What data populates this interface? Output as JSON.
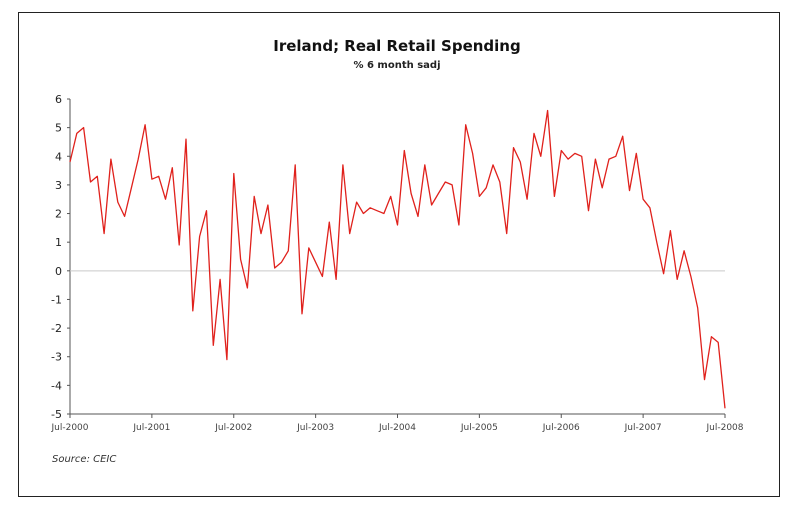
{
  "chart_data": {
    "type": "line",
    "title": "Ireland; Real Retail Spending",
    "subtitle": "% 6 month sadj",
    "source": "Source: CEIC",
    "ylim": [
      -5,
      6
    ],
    "yticks": [
      "6",
      "5",
      "4",
      "3",
      "2",
      "1",
      "0",
      "-1",
      "-2",
      "-3",
      "-4",
      "-5"
    ],
    "xticks": [
      "Jul-2000",
      "Jul-2001",
      "Jul-2002",
      "Jul-2003",
      "Jul-2004",
      "Jul-2005",
      "Jul-2006",
      "Jul-2007",
      "Jul-2008"
    ],
    "grid": false,
    "zero_line": true,
    "line_color": "#e0211c",
    "series": [
      {
        "x": [
          "2000-07",
          "2000-08",
          "2000-09",
          "2000-10",
          "2000-11",
          "2000-12",
          "2001-01",
          "2001-02",
          "2001-03",
          "2001-04",
          "2001-05",
          "2001-06",
          "2001-07",
          "2001-08",
          "2001-09",
          "2001-10",
          "2001-11",
          "2001-12",
          "2002-01",
          "2002-02",
          "2002-03",
          "2002-04",
          "2002-05",
          "2002-06",
          "2002-07",
          "2002-08",
          "2002-09",
          "2002-10",
          "2002-11",
          "2002-12",
          "2003-01",
          "2003-02",
          "2003-03",
          "2003-04",
          "2003-05",
          "2003-06",
          "2003-07",
          "2003-08",
          "2003-09",
          "2003-10",
          "2003-11",
          "2003-12",
          "2004-01",
          "2004-02",
          "2004-03",
          "2004-04",
          "2004-05",
          "2004-06",
          "2004-07",
          "2004-08",
          "2004-09",
          "2004-10",
          "2004-11",
          "2004-12",
          "2005-01",
          "2005-02",
          "2005-03",
          "2005-04",
          "2005-05",
          "2005-06",
          "2005-07",
          "2005-08",
          "2005-09",
          "2005-10",
          "2005-11",
          "2005-12",
          "2006-01",
          "2006-02",
          "2006-03",
          "2006-04",
          "2006-05",
          "2006-06",
          "2006-07",
          "2006-08",
          "2006-09",
          "2006-10",
          "2006-11",
          "2006-12",
          "2007-01",
          "2007-02",
          "2007-03",
          "2007-04",
          "2007-05",
          "2007-06",
          "2007-07",
          "2007-08",
          "2007-09",
          "2007-10",
          "2007-11",
          "2007-12",
          "2008-01",
          "2008-02",
          "2008-03",
          "2008-04",
          "2008-05",
          "2008-06",
          "2008-07"
        ],
        "values": [
          3.8,
          4.8,
          5.0,
          3.1,
          3.3,
          1.3,
          3.9,
          2.4,
          1.9,
          2.9,
          3.9,
          5.1,
          3.2,
          3.3,
          2.5,
          3.6,
          0.9,
          4.6,
          -1.4,
          1.2,
          2.1,
          -2.6,
          -0.3,
          -3.1,
          3.4,
          0.4,
          -0.6,
          2.6,
          1.3,
          2.3,
          0.1,
          0.3,
          0.7,
          3.7,
          -1.5,
          0.8,
          0.3,
          -0.2,
          1.7,
          -0.3,
          3.7,
          1.3,
          2.4,
          2.0,
          2.2,
          2.1,
          2.0,
          2.6,
          1.6,
          4.2,
          2.7,
          1.9,
          3.7,
          2.3,
          2.7,
          3.1,
          3.0,
          1.6,
          5.1,
          4.1,
          2.6,
          2.9,
          3.7,
          3.1,
          1.3,
          4.3,
          3.8,
          2.5,
          4.8,
          4.0,
          5.6,
          2.6,
          4.2,
          3.9,
          4.1,
          4.0,
          2.1,
          3.9,
          2.9,
          3.9,
          4.0,
          4.7,
          2.8,
          4.1,
          2.5,
          2.2,
          1.0,
          -0.1,
          1.4,
          -0.3,
          0.7,
          -0.2,
          -1.3,
          -3.8,
          -2.3,
          -2.5,
          -4.8
        ]
      }
    ]
  }
}
